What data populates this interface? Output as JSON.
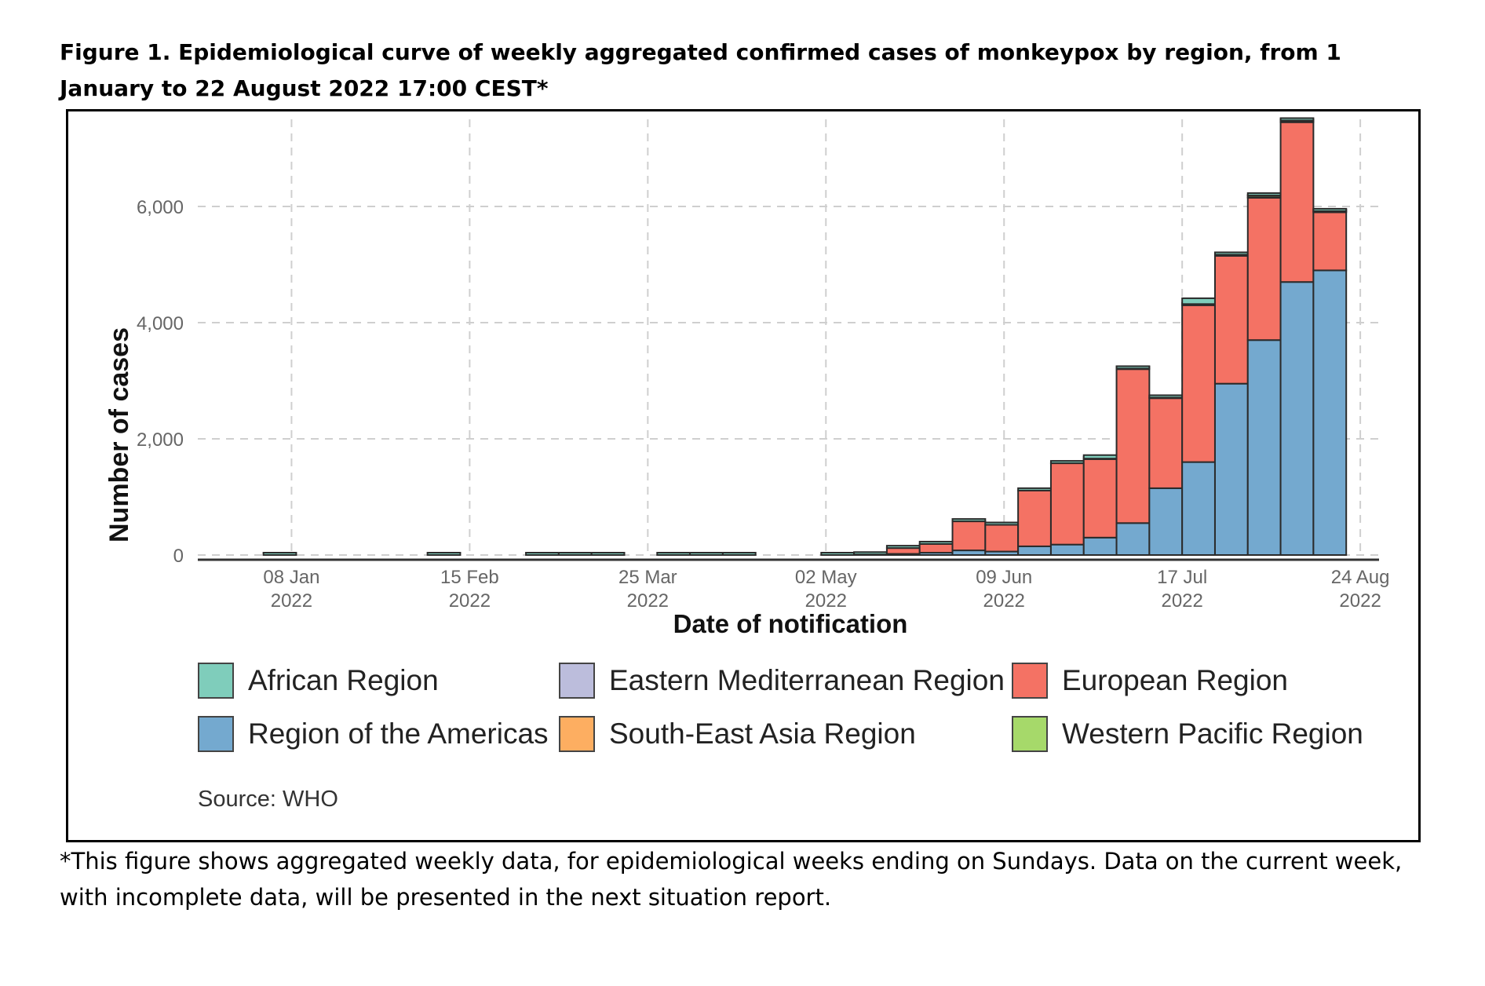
{
  "figure": {
    "title": "Figure 1. Epidemiological curve of weekly aggregated confirmed cases of monkeypox by region, from 1 January to 22 August 2022 17:00 CEST*",
    "footnote": "*This figure shows aggregated weekly data, for epidemiological weeks ending on Sundays. Data on the current week, with incomplete data, will be presented in the next situation report.",
    "source": "Source: WHO"
  },
  "chart_data": {
    "type": "bar",
    "stacked": true,
    "xlabel": "Date of notification",
    "ylabel": "Number of cases",
    "ylim": [
      0,
      7500
    ],
    "yticks": [
      0,
      2000,
      4000,
      6000
    ],
    "ytick_labels": [
      "0",
      "2,000",
      "4,000",
      "6,000"
    ],
    "x_range": [
      "2021-12-19",
      "2022-08-28"
    ],
    "xticks": [
      {
        "date": "2022-01-08",
        "line1": "08 Jan",
        "line2": "2022"
      },
      {
        "date": "2022-02-15",
        "line1": "15 Feb",
        "line2": "2022"
      },
      {
        "date": "2022-03-25",
        "line1": "25 Mar",
        "line2": "2022"
      },
      {
        "date": "2022-05-02",
        "line1": "02 May",
        "line2": "2022"
      },
      {
        "date": "2022-06-09",
        "line1": "09 Jun",
        "line2": "2022"
      },
      {
        "date": "2022-07-17",
        "line1": "17 Jul",
        "line2": "2022"
      },
      {
        "date": "2022-08-24",
        "line1": "24 Aug",
        "line2": "2022"
      }
    ],
    "grid": true,
    "legend_position": "bottom",
    "series": [
      {
        "name": "African Region",
        "color": "#7fcdbb"
      },
      {
        "name": "Eastern Mediterranean Region",
        "color": "#bcbddc"
      },
      {
        "name": "European Region",
        "color": "#f47264"
      },
      {
        "name": "Region of the Americas",
        "color": "#74a9cf"
      },
      {
        "name": "South-East Asia Region",
        "color": "#fdae61"
      },
      {
        "name": "Western Pacific Region",
        "color": "#a6d96a"
      }
    ],
    "weeks": [
      {
        "week_ending": "2022-01-09",
        "African Region": 2,
        "Eastern Mediterranean Region": 0,
        "European Region": 0,
        "Region of the Americas": 0,
        "South-East Asia Region": 0,
        "Western Pacific Region": 0
      },
      {
        "week_ending": "2022-02-13",
        "African Region": 2,
        "Eastern Mediterranean Region": 0,
        "European Region": 0,
        "Region of the Americas": 0,
        "South-East Asia Region": 0,
        "Western Pacific Region": 0
      },
      {
        "week_ending": "2022-03-06",
        "African Region": 2,
        "Eastern Mediterranean Region": 0,
        "European Region": 0,
        "Region of the Americas": 0,
        "South-East Asia Region": 0,
        "Western Pacific Region": 0
      },
      {
        "week_ending": "2022-03-13",
        "African Region": 2,
        "Eastern Mediterranean Region": 0,
        "European Region": 0,
        "Region of the Americas": 0,
        "South-East Asia Region": 0,
        "Western Pacific Region": 0
      },
      {
        "week_ending": "2022-03-20",
        "African Region": 2,
        "Eastern Mediterranean Region": 0,
        "European Region": 0,
        "Region of the Americas": 0,
        "South-East Asia Region": 0,
        "Western Pacific Region": 0
      },
      {
        "week_ending": "2022-04-03",
        "African Region": 2,
        "Eastern Mediterranean Region": 0,
        "European Region": 0,
        "Region of the Americas": 0,
        "South-East Asia Region": 0,
        "Western Pacific Region": 0
      },
      {
        "week_ending": "2022-04-10",
        "African Region": 2,
        "Eastern Mediterranean Region": 0,
        "European Region": 0,
        "Region of the Americas": 0,
        "South-East Asia Region": 0,
        "Western Pacific Region": 0
      },
      {
        "week_ending": "2022-04-17",
        "African Region": 2,
        "Eastern Mediterranean Region": 0,
        "European Region": 0,
        "Region of the Americas": 0,
        "South-East Asia Region": 0,
        "Western Pacific Region": 0
      },
      {
        "week_ending": "2022-05-08",
        "African Region": 2,
        "Eastern Mediterranean Region": 0,
        "European Region": 0,
        "Region of the Americas": 0,
        "South-East Asia Region": 0,
        "Western Pacific Region": 0
      },
      {
        "week_ending": "2022-05-15",
        "African Region": 2,
        "Eastern Mediterranean Region": 0,
        "European Region": 10,
        "Region of the Americas": 0,
        "South-East Asia Region": 0,
        "Western Pacific Region": 0
      },
      {
        "week_ending": "2022-05-22",
        "African Region": 5,
        "Eastern Mediterranean Region": 0,
        "European Region": 100,
        "Region of the Americas": 20,
        "South-East Asia Region": 0,
        "Western Pacific Region": 0
      },
      {
        "week_ending": "2022-05-29",
        "African Region": 5,
        "Eastern Mediterranean Region": 0,
        "European Region": 150,
        "Region of the Americas": 40,
        "South-East Asia Region": 0,
        "Western Pacific Region": 0
      },
      {
        "week_ending": "2022-06-05",
        "African Region": 10,
        "Eastern Mediterranean Region": 0,
        "European Region": 500,
        "Region of the Americas": 80,
        "South-East Asia Region": 0,
        "Western Pacific Region": 0
      },
      {
        "week_ending": "2022-06-12",
        "African Region": 10,
        "Eastern Mediterranean Region": 0,
        "European Region": 460,
        "Region of the Americas": 60,
        "South-East Asia Region": 0,
        "Western Pacific Region": 0
      },
      {
        "week_ending": "2022-06-19",
        "African Region": 10,
        "Eastern Mediterranean Region": 0,
        "European Region": 960,
        "Region of the Americas": 150,
        "South-East Asia Region": 0,
        "Western Pacific Region": 0
      },
      {
        "week_ending": "2022-06-26",
        "African Region": 20,
        "Eastern Mediterranean Region": 0,
        "European Region": 1400,
        "Region of the Americas": 180,
        "South-East Asia Region": 0,
        "Western Pacific Region": 0
      },
      {
        "week_ending": "2022-07-03",
        "African Region": 60,
        "Eastern Mediterranean Region": 0,
        "European Region": 1350,
        "Region of the Americas": 300,
        "South-East Asia Region": 0,
        "Western Pacific Region": 10
      },
      {
        "week_ending": "2022-07-10",
        "African Region": 20,
        "Eastern Mediterranean Region": 0,
        "European Region": 2650,
        "Region of the Americas": 550,
        "South-East Asia Region": 0,
        "Western Pacific Region": 10
      },
      {
        "week_ending": "2022-07-17",
        "African Region": 20,
        "Eastern Mediterranean Region": 0,
        "European Region": 1550,
        "Region of the Americas": 1150,
        "South-East Asia Region": 0,
        "Western Pacific Region": 10
      },
      {
        "week_ending": "2022-07-24",
        "African Region": 100,
        "Eastern Mediterranean Region": 0,
        "European Region": 2700,
        "Region of the Americas": 1600,
        "South-East Asia Region": 0,
        "Western Pacific Region": 20
      },
      {
        "week_ending": "2022-07-31",
        "African Region": 30,
        "Eastern Mediterranean Region": 0,
        "European Region": 2200,
        "Region of the Americas": 2950,
        "South-East Asia Region": 0,
        "Western Pacific Region": 20
      },
      {
        "week_ending": "2022-08-07",
        "African Region": 30,
        "Eastern Mediterranean Region": 10,
        "European Region": 2450,
        "Region of the Americas": 3700,
        "South-East Asia Region": 0,
        "Western Pacific Region": 30
      },
      {
        "week_ending": "2022-08-14",
        "African Region": 20,
        "Eastern Mediterranean Region": 10,
        "European Region": 2750,
        "Region of the Americas": 4700,
        "South-East Asia Region": 0,
        "Western Pacific Region": 20
      },
      {
        "week_ending": "2022-08-21",
        "African Region": 10,
        "Eastern Mediterranean Region": 10,
        "European Region": 1000,
        "Region of the Americas": 4900,
        "South-East Asia Region": 0,
        "Western Pacific Region": 10
      }
    ]
  }
}
